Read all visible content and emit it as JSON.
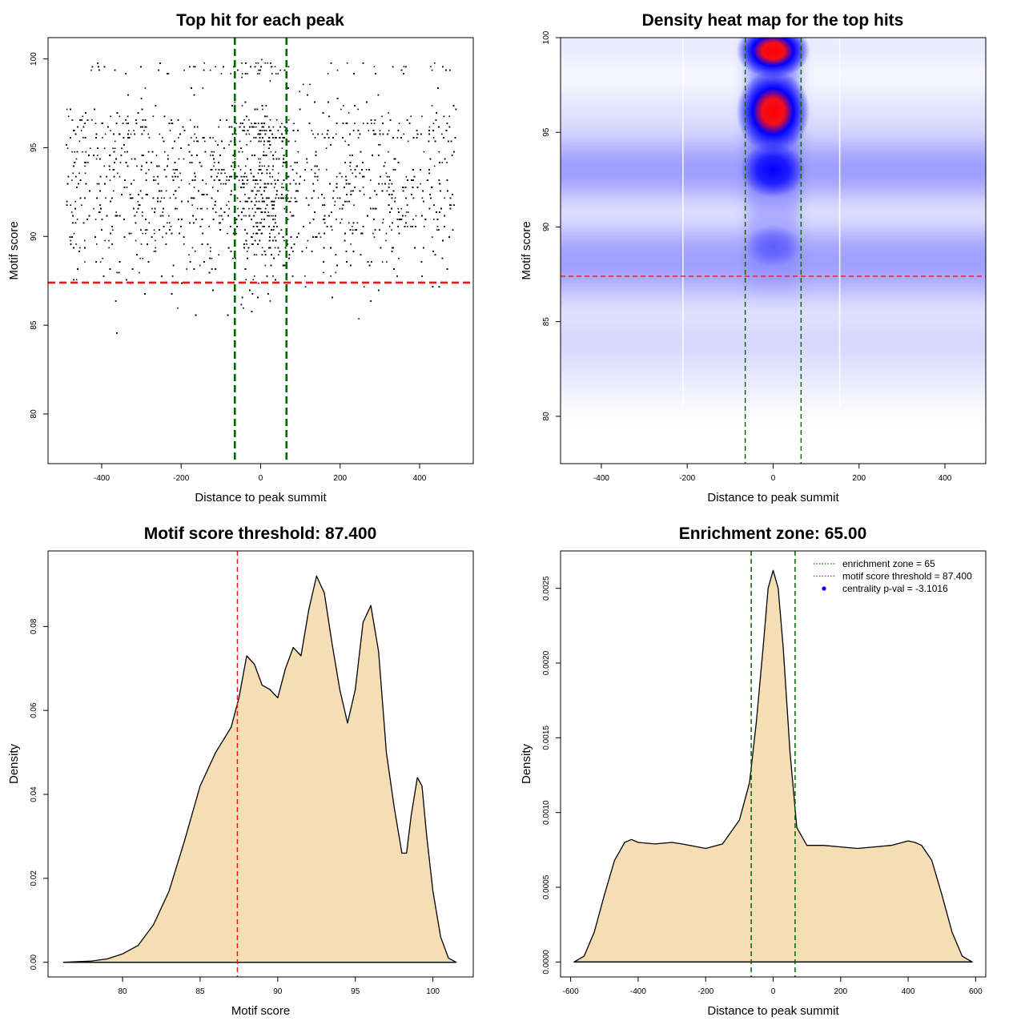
{
  "chart_data": [
    {
      "type": "scatter",
      "title": "Top hit for each peak",
      "xlabel": "Distance to peak summit",
      "ylabel": "Motif score",
      "xlim": [
        -535,
        535
      ],
      "ylim": [
        77.2,
        101.2
      ],
      "x_ticks": [
        "-400",
        "-200",
        "0",
        "200",
        "400"
      ],
      "x_tick_values": [
        -400,
        -200,
        0,
        200,
        400
      ],
      "y_ticks": [
        "80",
        "85",
        "90",
        "95",
        "100"
      ],
      "y_tick_values": [
        80,
        85,
        90,
        95,
        100
      ],
      "x_range": [
        -490,
        490
      ],
      "y_range": [
        77.6,
        100
      ],
      "point_color": "#000000",
      "reference_lines": [
        {
          "orientation": "horizontal",
          "value": 87.4,
          "color": "#e31a1c",
          "style": "dashed"
        },
        {
          "orientation": "vertical",
          "value": -65,
          "color": "#006400",
          "style": "dashed"
        },
        {
          "orientation": "vertical",
          "value": 65,
          "color": "#006400",
          "style": "dashed"
        }
      ]
    },
    {
      "type": "heatmap",
      "title": "Density heat map for the top hits",
      "xlabel": "Distance to peak summit",
      "ylabel": "Motif score",
      "xlim": [
        -495,
        495
      ],
      "ylim": [
        77.5,
        100
      ],
      "x_ticks": [
        "-400",
        "-200",
        "0",
        "200",
        "400"
      ],
      "x_tick_values": [
        -400,
        -200,
        0,
        200,
        400
      ],
      "y_ticks": [
        "80",
        "85",
        "90",
        "95",
        "100"
      ],
      "y_tick_values": [
        80,
        85,
        90,
        95,
        100
      ],
      "colormap": [
        "#ffffff",
        "#0000ff",
        "#ff0000"
      ],
      "hotspots": [
        {
          "x": 0,
          "y": 96.1,
          "intensity": "high"
        },
        {
          "x": 0,
          "y": 99.3,
          "intensity": "high"
        },
        {
          "x": 0,
          "y": 93.0,
          "intensity": "medium"
        },
        {
          "x": 0,
          "y": 89.0,
          "intensity": "low"
        }
      ],
      "reference_lines": [
        {
          "orientation": "horizontal",
          "value": 87.4,
          "color": "#e31a1c",
          "style": "dashed"
        },
        {
          "orientation": "vertical",
          "value": -65,
          "color": "#006400",
          "style": "dashed"
        },
        {
          "orientation": "vertical",
          "value": 65,
          "color": "#006400",
          "style": "dashed"
        }
      ]
    },
    {
      "type": "area",
      "title": "Motif score threshold: 87.400",
      "xlabel": "Motif score",
      "ylabel": "Density",
      "xlim": [
        75.2,
        102.6
      ],
      "ylim": [
        -0.0035,
        0.098
      ],
      "x_ticks": [
        "80",
        "85",
        "90",
        "95",
        "100"
      ],
      "x_tick_values": [
        80,
        85,
        90,
        95,
        100
      ],
      "y_ticks": [
        "0.00",
        "0.02",
        "0.04",
        "0.06",
        "0.08"
      ],
      "y_tick_values": [
        0,
        0.02,
        0.04,
        0.06,
        0.08
      ],
      "fill_color": "#f5deb3",
      "x": [
        76.2,
        78,
        79,
        80,
        81,
        82,
        83,
        84,
        85,
        86,
        87,
        87.5,
        88,
        88.5,
        89,
        89.5,
        90,
        90.5,
        91,
        91.5,
        92,
        92.5,
        93,
        93.5,
        94,
        94.5,
        95,
        95.5,
        96,
        96.5,
        97,
        97.5,
        98,
        98.3,
        98.6,
        99,
        99.3,
        99.6,
        100,
        100.5,
        101,
        101.5
      ],
      "y": [
        0,
        0.0003,
        0.0008,
        0.002,
        0.004,
        0.009,
        0.017,
        0.029,
        0.042,
        0.05,
        0.056,
        0.063,
        0.073,
        0.071,
        0.066,
        0.065,
        0.063,
        0.07,
        0.075,
        0.073,
        0.084,
        0.092,
        0.088,
        0.076,
        0.065,
        0.057,
        0.065,
        0.081,
        0.085,
        0.074,
        0.05,
        0.037,
        0.026,
        0.026,
        0.035,
        0.044,
        0.042,
        0.03,
        0.017,
        0.006,
        0.001,
        0
      ],
      "reference_lines": [
        {
          "orientation": "vertical",
          "value": 87.4,
          "color": "#e31a1c",
          "style": "dashed"
        }
      ]
    },
    {
      "type": "area",
      "title": "Enrichment zone: 65.00",
      "xlabel": "Distance to peak summit",
      "ylabel": "Density",
      "xlim": [
        -630,
        630
      ],
      "ylim": [
        -0.0001,
        0.00275
      ],
      "x_ticks": [
        "-600",
        "-400",
        "-200",
        "0",
        "200",
        "400",
        "600"
      ],
      "x_tick_values": [
        -600,
        -400,
        -200,
        0,
        200,
        400,
        600
      ],
      "y_ticks": [
        "0.0000",
        "0.0005",
        "0.0010",
        "0.0015",
        "0.0020",
        "0.0025"
      ],
      "y_tick_values": [
        0,
        0.0005,
        0.001,
        0.0015,
        0.002,
        0.0025
      ],
      "fill_color": "#f5deb3",
      "x": [
        -590,
        -560,
        -530,
        -500,
        -470,
        -440,
        -420,
        -400,
        -350,
        -300,
        -270,
        -200,
        -150,
        -100,
        -70,
        -50,
        -30,
        -15,
        0,
        15,
        30,
        50,
        70,
        100,
        150,
        200,
        250,
        300,
        350,
        400,
        420,
        440,
        470,
        500,
        530,
        560,
        590
      ],
      "y": [
        0,
        4e-05,
        0.0002,
        0.00045,
        0.00068,
        0.0008,
        0.00082,
        0.0008,
        0.00079,
        0.0008,
        0.00079,
        0.00076,
        0.00079,
        0.00095,
        0.0012,
        0.0016,
        0.0021,
        0.0025,
        0.00262,
        0.0025,
        0.0021,
        0.0014,
        0.0009,
        0.00078,
        0.00078,
        0.00077,
        0.00076,
        0.00077,
        0.00078,
        0.00081,
        0.0008,
        0.00078,
        0.00068,
        0.00045,
        0.0002,
        4e-05,
        0
      ],
      "reference_lines": [
        {
          "orientation": "vertical",
          "value": -65,
          "color": "#006400",
          "style": "dashed"
        },
        {
          "orientation": "vertical",
          "value": 65,
          "color": "#006400",
          "style": "dashed"
        }
      ],
      "legend": {
        "position": "top-right",
        "entries": [
          {
            "label": "enrichment zone = 65",
            "color": "#006400",
            "symbol": "dotted-line"
          },
          {
            "label": "motif score threshold = 87.400",
            "color": "#e31a1c",
            "symbol": "dotted-line"
          },
          {
            "label": "centrality p-val = -3.1016",
            "color": "#0000ff",
            "symbol": "dot"
          }
        ]
      }
    }
  ]
}
